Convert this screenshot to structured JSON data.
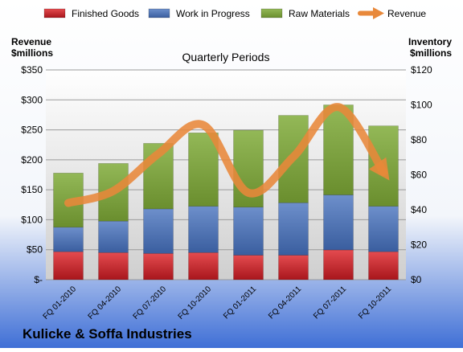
{
  "chart_data": {
    "type": "bar",
    "stacked": true,
    "title": "Quarterly Periods",
    "company": "Kulicke & Soffa Industries",
    "left_axis": {
      "label_line1": "Revenue",
      "label_line2": "$millions",
      "ticks": [
        "$-",
        "$50",
        "$100",
        "$150",
        "$200",
        "$250",
        "$300",
        "$350"
      ],
      "range": [
        0,
        350
      ]
    },
    "right_axis": {
      "label_line1": "Inventory",
      "label_line2": "$millions",
      "ticks": [
        "$0",
        "$20",
        "$40",
        "$60",
        "$80",
        "$100",
        "$120"
      ],
      "range": [
        0,
        120
      ]
    },
    "categories": [
      "FQ 01-2010",
      "FQ 04-2010",
      "FQ 07-2010",
      "FQ 10-2010",
      "FQ 01-2011",
      "FQ 04-2011",
      "FQ 07-2011",
      "FQ 10-2011"
    ],
    "series": [
      {
        "name": "Finished Goods",
        "axis": "right",
        "color": "#c0222a",
        "values": [
          16,
          15.5,
          15,
          15.5,
          14,
          14,
          17,
          16
        ]
      },
      {
        "name": "Work in Progress",
        "axis": "right",
        "color": "#4f74b6",
        "values": [
          14,
          18,
          25.5,
          26.5,
          27.5,
          30,
          31.5,
          26
        ]
      },
      {
        "name": "Raw Materials",
        "axis": "right",
        "color": "#7fa040",
        "values": [
          31,
          33,
          37.5,
          42,
          44,
          50,
          51.5,
          46
        ]
      },
      {
        "name": "Revenue",
        "axis": "left",
        "color": "#e8883a",
        "values": [
          128,
          148,
          210,
          258,
          145,
          205,
          288,
          180
        ]
      }
    ],
    "grid": true,
    "legend": "top"
  }
}
